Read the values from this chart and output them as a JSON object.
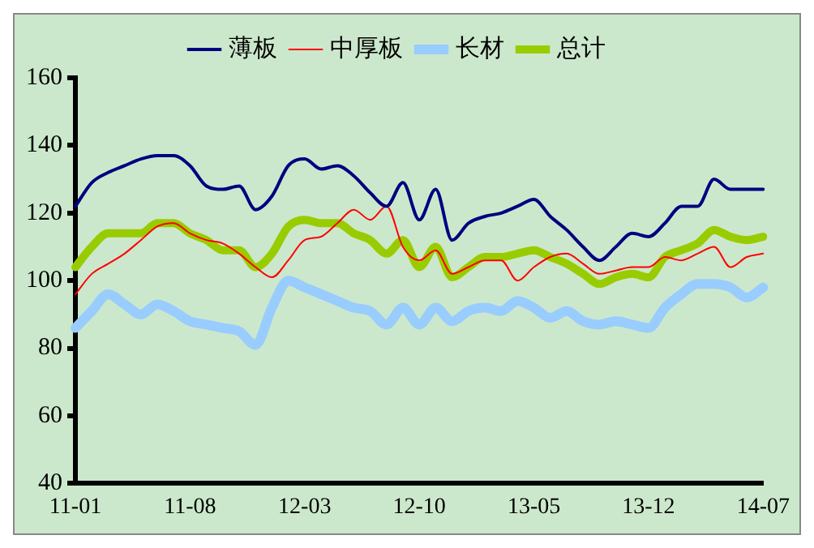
{
  "chart_data": {
    "type": "line",
    "categories": [
      "11-01",
      null,
      null,
      null,
      null,
      null,
      null,
      "11-08",
      null,
      null,
      null,
      null,
      null,
      null,
      "12-03",
      null,
      null,
      null,
      null,
      null,
      null,
      "12-10",
      null,
      null,
      null,
      null,
      null,
      null,
      "13-05",
      null,
      null,
      null,
      null,
      null,
      null,
      "13-12",
      null,
      null,
      null,
      null,
      null,
      null,
      "14-07"
    ],
    "series": [
      {
        "name": "薄板",
        "color": "#000080",
        "values": [
          122,
          129,
          132,
          134,
          136,
          137,
          137,
          134,
          128,
          127,
          128,
          121,
          125,
          134,
          136,
          133,
          134,
          131,
          126,
          122,
          129,
          118,
          127,
          112,
          117,
          119,
          120,
          122,
          124,
          119,
          115,
          110,
          106,
          110,
          114,
          113,
          117,
          122,
          122,
          130,
          127,
          127,
          127
        ]
      },
      {
        "name": "中厚板",
        "color": "#ff0000",
        "values": [
          96,
          102,
          105,
          108,
          112,
          116,
          117,
          114,
          112,
          111,
          108,
          104,
          101,
          106,
          112,
          113,
          117,
          121,
          118,
          122,
          110,
          106,
          109,
          102,
          104,
          106,
          106,
          100,
          104,
          107,
          108,
          105,
          102,
          103,
          104,
          104,
          107,
          106,
          108,
          110,
          104,
          107,
          108
        ]
      },
      {
        "name": "长材",
        "color": "#99ccff",
        "values": [
          86,
          91,
          96,
          93,
          90,
          93,
          91,
          88,
          87,
          86,
          85,
          81,
          92,
          100,
          98,
          96,
          94,
          92,
          91,
          87,
          92,
          87,
          92,
          88,
          91,
          92,
          91,
          94,
          92,
          89,
          91,
          88,
          87,
          88,
          87,
          86,
          92,
          96,
          99,
          99,
          98,
          95,
          98
        ]
      },
      {
        "name": "总计",
        "color": "#99cc00",
        "values": [
          104,
          110,
          114,
          114,
          114,
          117,
          117,
          114,
          112,
          109,
          109,
          104,
          108,
          116,
          118,
          117,
          117,
          114,
          112,
          108,
          112,
          104,
          110,
          101,
          104,
          107,
          107,
          108,
          109,
          107,
          105,
          102,
          99,
          101,
          102,
          101,
          107,
          109,
          111,
          115,
          113,
          112,
          113
        ]
      }
    ],
    "ylim": [
      40,
      160
    ],
    "yticks": [
      40,
      60,
      80,
      100,
      120,
      140,
      160
    ],
    "grid": false,
    "legend": "top",
    "marker": "none",
    "line_style": "solid"
  }
}
